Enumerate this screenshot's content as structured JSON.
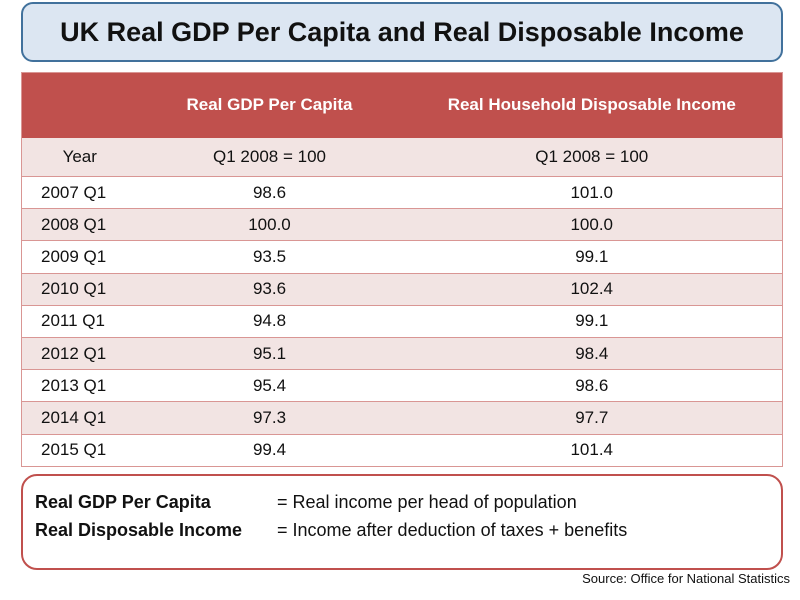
{
  "title": "UK Real GDP Per Capita and Real Disposable Income",
  "chart_data": {
    "type": "table",
    "columns": [
      "",
      "Real GDP Per Capita",
      "Real Household Disposable Income"
    ],
    "subheader": [
      "Year",
      "Q1 2008 = 100",
      "Q1 2008 = 100"
    ],
    "rows": [
      [
        "2007 Q1",
        "98.6",
        "101.0"
      ],
      [
        "2008 Q1",
        "100.0",
        "100.0"
      ],
      [
        "2009 Q1",
        "93.5",
        "99.1"
      ],
      [
        "2010 Q1",
        "93.6",
        "102.4"
      ],
      [
        "2011 Q1",
        "94.8",
        "99.1"
      ],
      [
        "2012 Q1",
        "95.1",
        "98.4"
      ],
      [
        "2013 Q1",
        "95.4",
        "98.6"
      ],
      [
        "2014 Q1",
        "97.3",
        "97.7"
      ],
      [
        "2015 Q1",
        "99.4",
        "101.4"
      ]
    ]
  },
  "legend": [
    {
      "term": "Real GDP Per Capita",
      "definition": "= Real income per head of population"
    },
    {
      "term": "Real Disposable Income",
      "definition": "= Income after deduction of taxes + benefits"
    }
  ],
  "source": "Source: Office for National Statistics",
  "colors": {
    "header": "#c0504d",
    "band": "#f2e4e3",
    "title_bg": "#dce6f2",
    "title_border": "#41719c"
  }
}
